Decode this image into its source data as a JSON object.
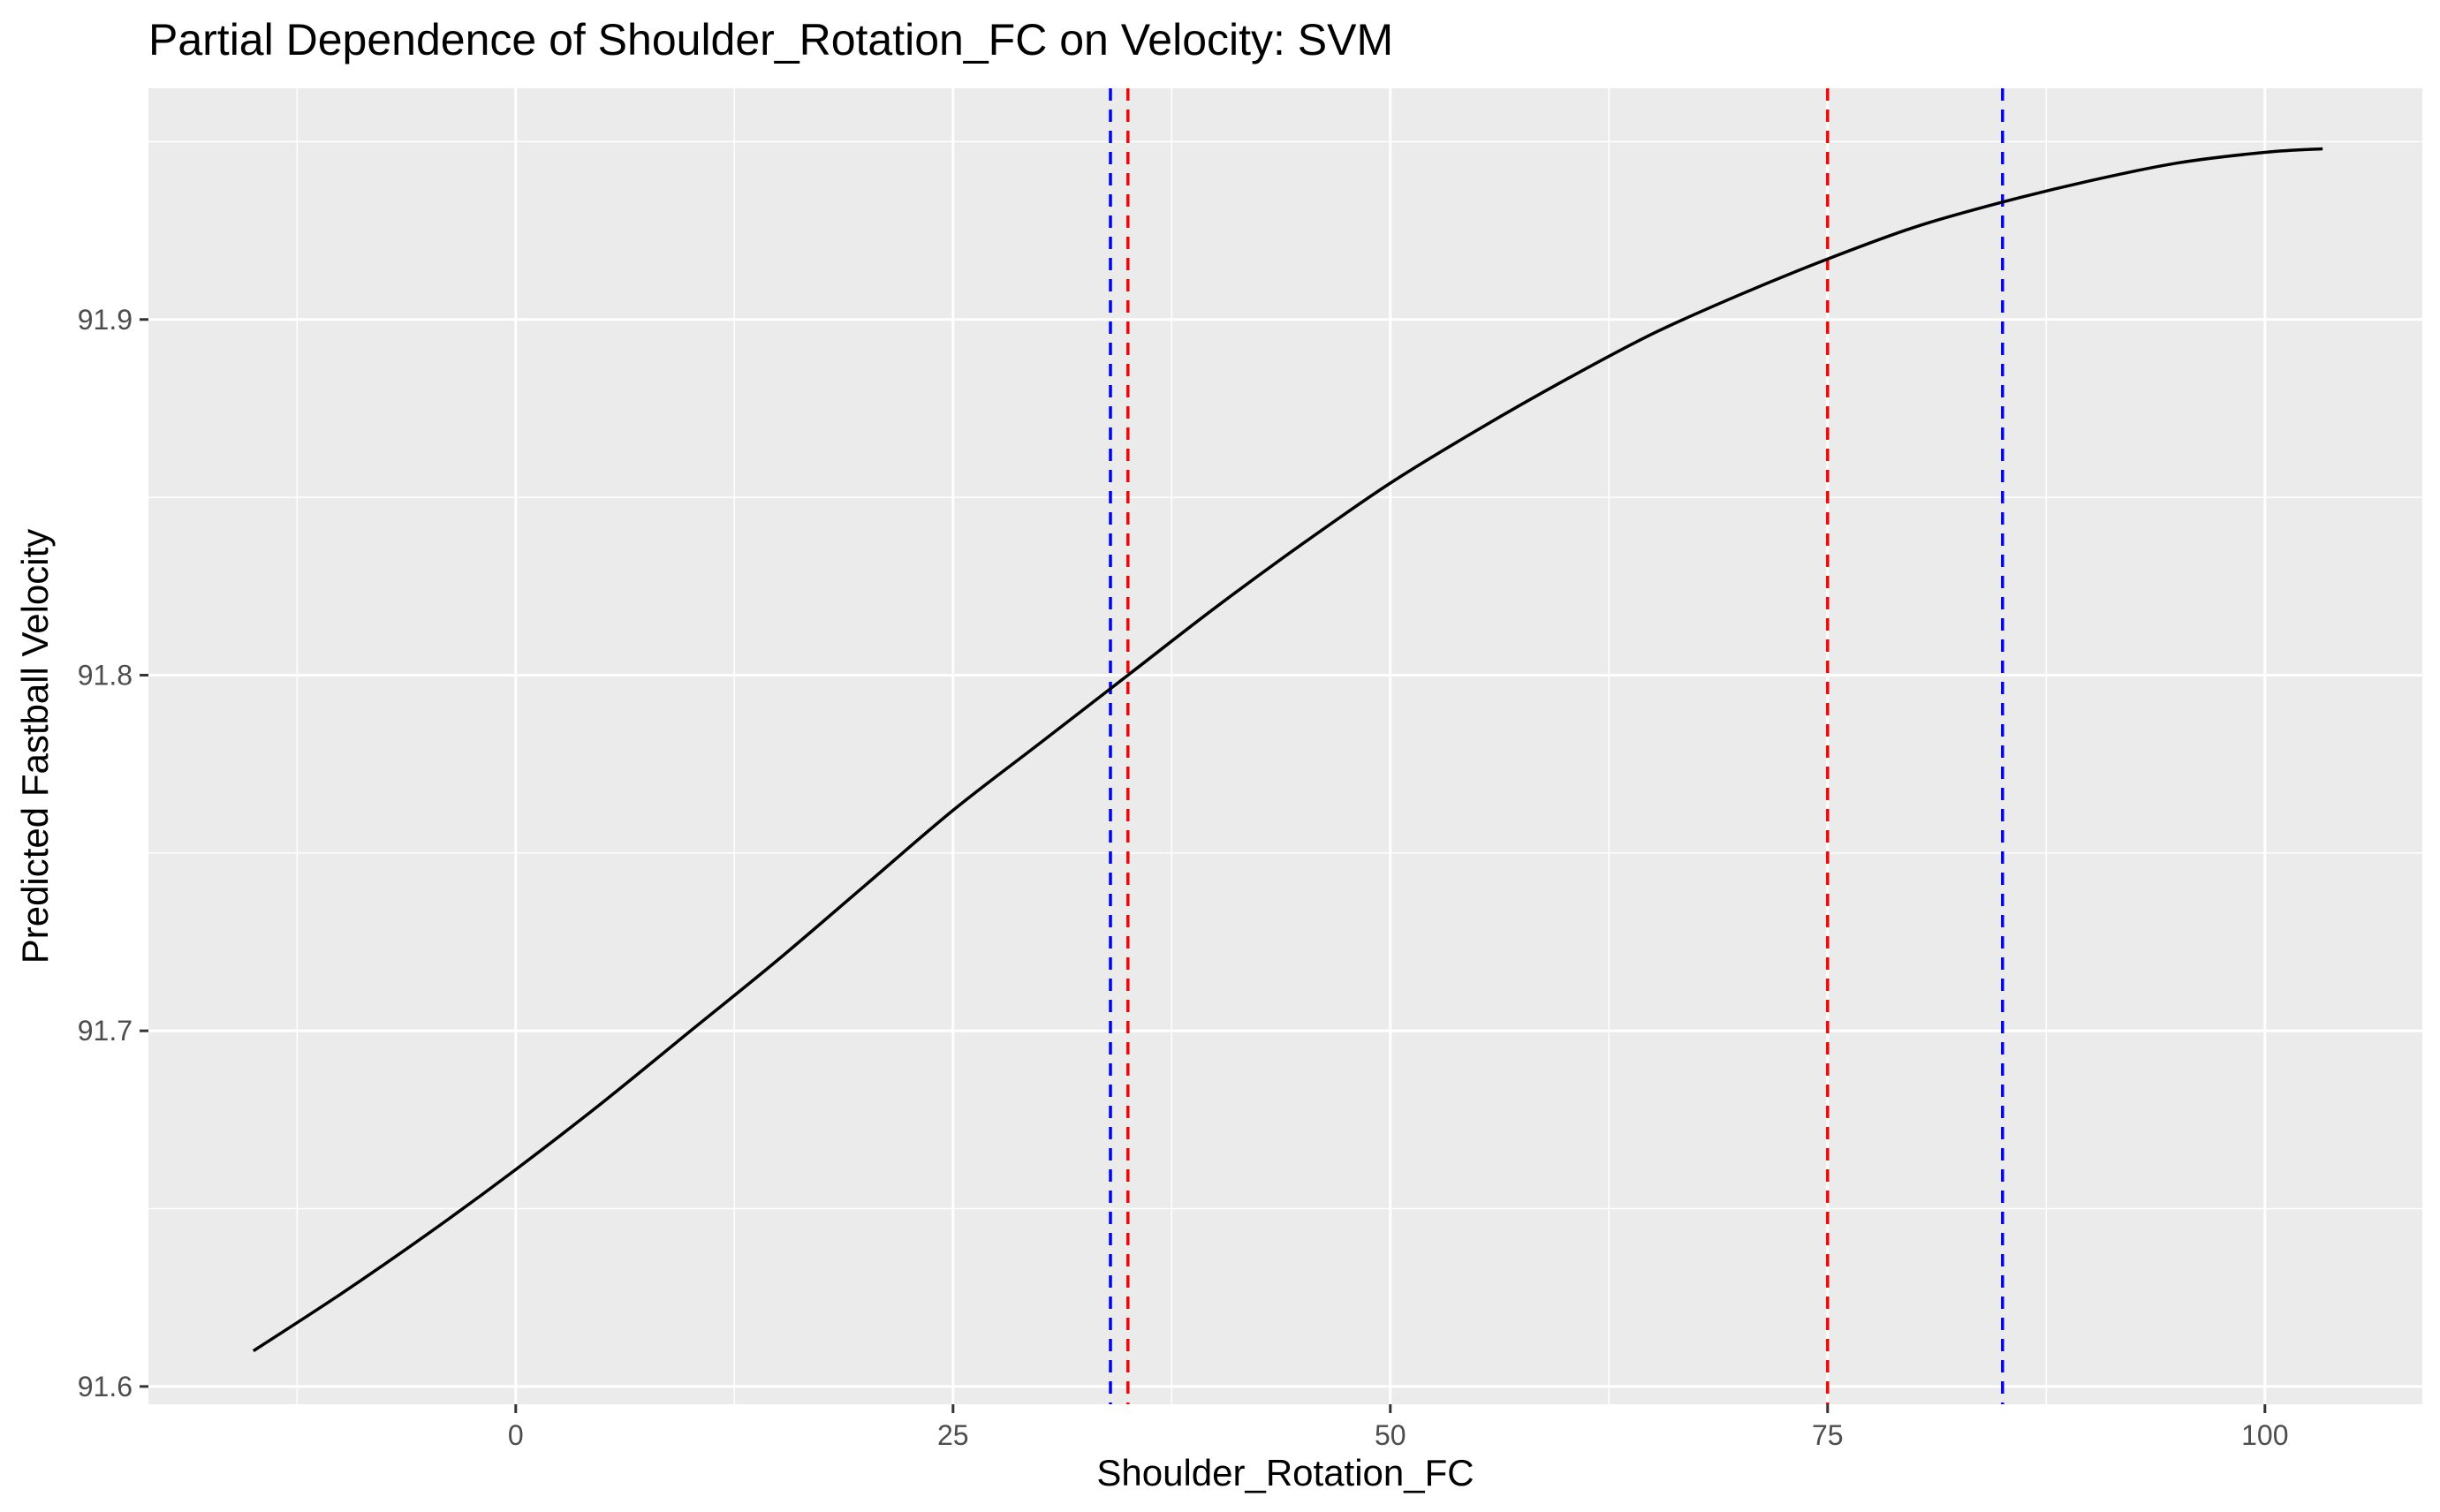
{
  "chart_data": {
    "type": "line",
    "title": "Partial Dependence of Shoulder_Rotation_FC on Velocity: SVM",
    "xlabel": "Shoulder_Rotation_FC",
    "ylabel": "Predicted Fastball Velocity",
    "xlim": [
      -21,
      109
    ],
    "ylim": [
      91.595,
      91.965
    ],
    "x_ticks": [
      0,
      25,
      50,
      75,
      100
    ],
    "x_tick_labels": [
      "0",
      "25",
      "50",
      "75",
      "100"
    ],
    "y_ticks": [
      91.6,
      91.7,
      91.8,
      91.9
    ],
    "y_tick_labels": [
      "91.6",
      "91.7",
      "91.8",
      "91.9"
    ],
    "x_minor_ticks": [
      -12.5,
      12.5,
      37.5,
      62.5,
      87.5
    ],
    "y_minor_ticks": [
      91.65,
      91.75,
      91.85,
      91.95
    ],
    "grid": true,
    "background": "#ebebeb",
    "series": [
      {
        "color": "#000000",
        "x": [
          -15,
          -10,
          -5,
          0,
          5,
          10,
          15,
          20,
          25,
          30,
          35,
          40,
          45,
          50,
          55,
          60,
          65,
          70,
          75,
          80,
          85,
          90,
          95,
          100,
          103.3
        ],
        "y": [
          91.61,
          91.626,
          91.643,
          91.661,
          91.68,
          91.7,
          91.72,
          91.741,
          91.762,
          91.781,
          91.8,
          91.819,
          91.837,
          91.854,
          91.869,
          91.883,
          91.896,
          91.907,
          91.917,
          91.926,
          91.933,
          91.939,
          91.944,
          91.947,
          91.948
        ]
      }
    ],
    "vlines": [
      {
        "x": 34,
        "color": "#0000ff",
        "style": "dashed"
      },
      {
        "x": 35,
        "color": "#ff0000",
        "style": "dashed"
      },
      {
        "x": 75,
        "color": "#ff0000",
        "style": "dashed"
      },
      {
        "x": 85,
        "color": "#0000ff",
        "style": "dashed"
      }
    ]
  }
}
